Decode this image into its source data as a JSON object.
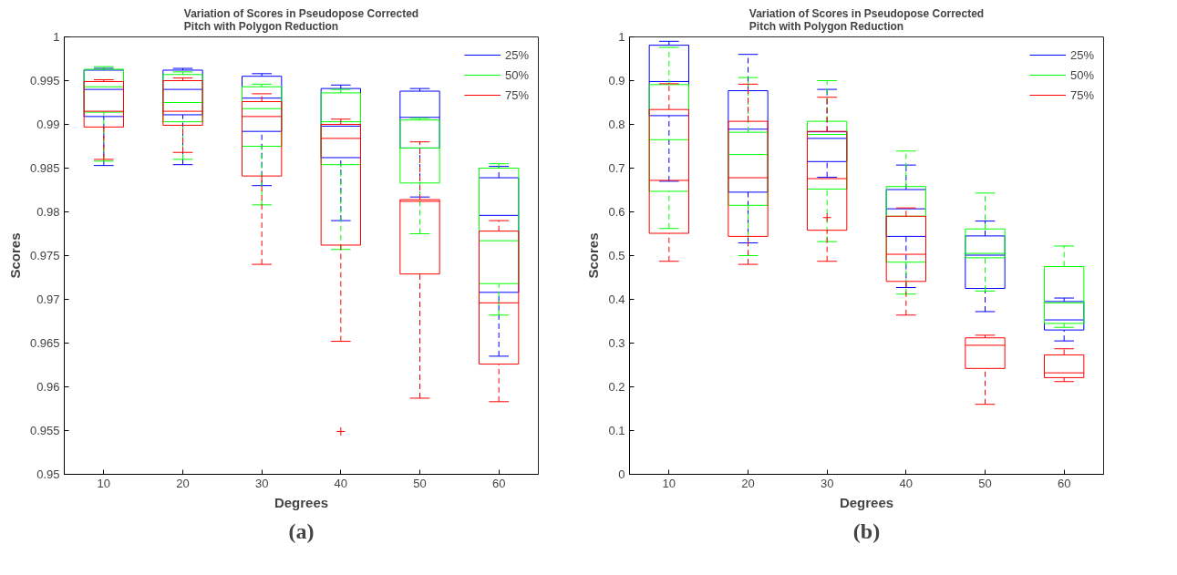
{
  "chart_data": [
    {
      "type": "box",
      "title": "Variation of Scores in Pseudopose Corrected\nPitch with Polygon Reduction",
      "xlabel": "Degrees",
      "ylabel": "Scores",
      "categories": [
        "10",
        "20",
        "30",
        "40",
        "50",
        "60"
      ],
      "ylim": [
        0.95,
        1
      ],
      "yticks": [
        0.95,
        0.955,
        0.96,
        0.965,
        0.97,
        0.975,
        0.98,
        0.985,
        0.99,
        0.995,
        1
      ],
      "grid": false,
      "legend": "top right",
      "line_style": "dashed",
      "annotations": [
        "(a)"
      ],
      "series": [
        {
          "name": "25%",
          "color": "#0000ff",
          "boxes": [
            {
              "low": 0.9853,
              "q1": 0.9909,
              "median": 0.994,
              "q3": 0.9962,
              "high": 0.9964
            },
            {
              "low": 0.9854,
              "q1": 0.9911,
              "median": 0.994,
              "q3": 0.9962,
              "high": 0.9964
            },
            {
              "low": 0.983,
              "q1": 0.9892,
              "median": 0.993,
              "q3": 0.9955,
              "high": 0.9958
            },
            {
              "low": 0.979,
              "q1": 0.9862,
              "median": 0.9898,
              "q3": 0.9941,
              "high": 0.9945
            },
            {
              "low": 0.9817,
              "q1": 0.9873,
              "median": 0.9908,
              "q3": 0.9938,
              "high": 0.9941
            },
            {
              "low": 0.9635,
              "q1": 0.9708,
              "median": 0.9796,
              "q3": 0.9839,
              "high": 0.9852
            }
          ]
        },
        {
          "name": "50%",
          "color": "#00ff00",
          "boxes": [
            {
              "low": 0.9858,
              "q1": 0.9914,
              "median": 0.9943,
              "q3": 0.9963,
              "high": 0.9966
            },
            {
              "low": 0.986,
              "q1": 0.9903,
              "median": 0.9925,
              "q3": 0.9957,
              "high": 0.996
            },
            {
              "low": 0.9808,
              "q1": 0.9875,
              "median": 0.9918,
              "q3": 0.9943,
              "high": 0.9946
            },
            {
              "low": 0.9757,
              "q1": 0.9854,
              "median": 0.9903,
              "q3": 0.9936,
              "high": 0.994
            },
            {
              "low": 0.9775,
              "q1": 0.9833,
              "median": 0.9873,
              "q3": 0.9905,
              "high": 0.9907
            },
            {
              "low": 0.9682,
              "q1": 0.9718,
              "median": 0.9767,
              "q3": 0.985,
              "high": 0.9855
            }
          ]
        },
        {
          "name": "75%",
          "color": "#ff0000",
          "boxes": [
            {
              "low": 0.986,
              "q1": 0.9897,
              "median": 0.9915,
              "q3": 0.9949,
              "high": 0.9951
            },
            {
              "low": 0.9868,
              "q1": 0.9899,
              "median": 0.9915,
              "q3": 0.995,
              "high": 0.9953
            },
            {
              "low": 0.974,
              "q1": 0.9841,
              "median": 0.9909,
              "q3": 0.9926,
              "high": 0.9935
            },
            {
              "low": 0.9652,
              "q1": 0.9762,
              "median": 0.9884,
              "q3": 0.99,
              "high": 0.9906,
              "outliers": [
                0.9549
              ]
            },
            {
              "low": 0.9587,
              "q1": 0.9729,
              "median": 0.9812,
              "q3": 0.9814,
              "high": 0.988
            },
            {
              "low": 0.9583,
              "q1": 0.9626,
              "median": 0.9696,
              "q3": 0.9778,
              "high": 0.979
            }
          ]
        }
      ]
    },
    {
      "type": "box",
      "title": "Variation of Scores in Pseudopose Corrected\nPitch with Polygon Reduction",
      "xlabel": "Degrees",
      "ylabel": "Scores",
      "categories": [
        "10",
        "20",
        "30",
        "40",
        "50",
        "60"
      ],
      "ylim": [
        0,
        1
      ],
      "yticks": [
        0,
        0.1,
        0.2,
        0.3,
        0.4,
        0.5,
        0.6,
        0.7,
        0.8,
        0.9,
        1
      ],
      "grid": false,
      "legend": "top right",
      "line_style": "dashed",
      "annotations": [
        "(b)"
      ],
      "series": [
        {
          "name": "25%",
          "color": "#0000ff",
          "boxes": [
            {
              "low": 0.67,
              "q1": 0.82,
              "median": 0.898,
              "q3": 0.981,
              "high": 0.99
            },
            {
              "low": 0.529,
              "q1": 0.645,
              "median": 0.789,
              "q3": 0.877,
              "high": 0.96
            },
            {
              "low": 0.679,
              "q1": 0.715,
              "median": 0.768,
              "q3": 0.783,
              "high": 0.88
            },
            {
              "low": 0.427,
              "q1": 0.544,
              "median": 0.607,
              "q3": 0.651,
              "high": 0.707
            },
            {
              "low": 0.372,
              "q1": 0.425,
              "median": 0.501,
              "q3": 0.545,
              "high": 0.579
            },
            {
              "low": 0.305,
              "q1": 0.33,
              "median": 0.353,
              "q3": 0.395,
              "high": 0.403
            }
          ]
        },
        {
          "name": "50%",
          "color": "#00ff00",
          "boxes": [
            {
              "low": 0.562,
              "q1": 0.647,
              "median": 0.765,
              "q3": 0.891,
              "high": 0.976
            },
            {
              "low": 0.5,
              "q1": 0.615,
              "median": 0.731,
              "q3": 0.782,
              "high": 0.907
            },
            {
              "low": 0.532,
              "q1": 0.652,
              "median": 0.777,
              "q3": 0.807,
              "high": 0.9
            },
            {
              "low": 0.412,
              "q1": 0.485,
              "median": 0.59,
              "q3": 0.658,
              "high": 0.739
            },
            {
              "low": 0.419,
              "q1": 0.495,
              "median": 0.505,
              "q3": 0.561,
              "high": 0.643
            },
            {
              "low": 0.336,
              "q1": 0.345,
              "median": 0.392,
              "q3": 0.475,
              "high": 0.522
            }
          ]
        },
        {
          "name": "75%",
          "color": "#ff0000",
          "boxes": [
            {
              "low": 0.487,
              "q1": 0.551,
              "median": 0.672,
              "q3": 0.834,
              "high": 0.893
            },
            {
              "low": 0.48,
              "q1": 0.544,
              "median": 0.678,
              "q3": 0.807,
              "high": 0.892
            },
            {
              "low": 0.487,
              "q1": 0.558,
              "median": 0.676,
              "q3": 0.784,
              "high": 0.862,
              "outliers": [
                0.587
              ]
            },
            {
              "low": 0.364,
              "q1": 0.441,
              "median": 0.503,
              "q3": 0.59,
              "high": 0.609
            },
            {
              "low": 0.16,
              "q1": 0.242,
              "median": 0.295,
              "q3": 0.312,
              "high": 0.318
            },
            {
              "low": 0.212,
              "q1": 0.221,
              "median": 0.232,
              "q3": 0.273,
              "high": 0.287
            }
          ]
        }
      ]
    }
  ]
}
